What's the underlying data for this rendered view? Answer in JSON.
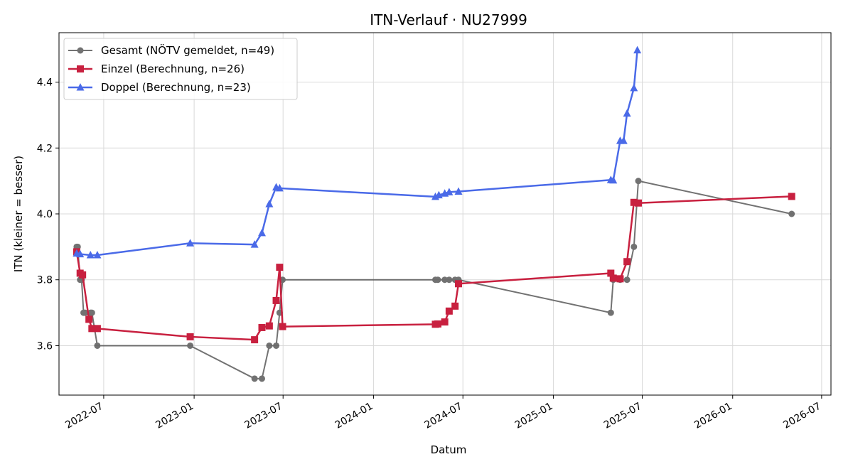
{
  "chart_data": {
    "type": "line",
    "title": "ITN-Verlauf · NU27999",
    "xlabel": "Datum",
    "ylabel": "ITN  (kleiner = besser)",
    "xlim": [
      "2022-04-01",
      "2026-07-20"
    ],
    "ylim": [
      3.45,
      4.55
    ],
    "x_ticks": [
      "2022-07",
      "2023-01",
      "2023-07",
      "2024-01",
      "2024-07",
      "2025-01",
      "2025-07",
      "2026-01",
      "2026-07"
    ],
    "y_ticks": [
      3.6,
      3.8,
      4.0,
      4.2,
      4.4
    ],
    "y_tick_labels": [
      "3.6",
      "3.8",
      "4.0",
      "4.2",
      "4.4"
    ],
    "grid": true,
    "legend_position": "top-left",
    "series": [
      {
        "name": "Gesamt (NÖTV gemeldet, n=49)",
        "color": "#444444",
        "marker": "circle",
        "points": [
          [
            "2022-05-07",
            3.9
          ],
          [
            "2022-05-09",
            3.9
          ],
          [
            "2022-05-14",
            3.8
          ],
          [
            "2022-05-17",
            3.8
          ],
          [
            "2022-05-21",
            3.7
          ],
          [
            "2022-05-24",
            3.7
          ],
          [
            "2022-06-04",
            3.7
          ],
          [
            "2022-06-07",
            3.7
          ],
          [
            "2022-06-18",
            3.6
          ],
          [
            "2022-12-24",
            3.6
          ],
          [
            "2023-05-04",
            3.5
          ],
          [
            "2023-05-19",
            3.5
          ],
          [
            "2023-06-03",
            3.6
          ],
          [
            "2023-06-17",
            3.6
          ],
          [
            "2023-06-24",
            3.7
          ],
          [
            "2023-06-30",
            3.8
          ],
          [
            "2024-05-06",
            3.8
          ],
          [
            "2024-05-11",
            3.8
          ],
          [
            "2024-05-25",
            3.8
          ],
          [
            "2024-06-03",
            3.8
          ],
          [
            "2024-06-15",
            3.8
          ],
          [
            "2024-06-22",
            3.8
          ],
          [
            "2025-04-28",
            3.7
          ],
          [
            "2025-05-03",
            3.8
          ],
          [
            "2025-05-17",
            3.8
          ],
          [
            "2025-05-31",
            3.8
          ],
          [
            "2025-06-14",
            3.9
          ],
          [
            "2025-06-23",
            4.1
          ],
          [
            "2026-05-01",
            4.0
          ]
        ]
      },
      {
        "name": "Einzel (Berechnung, n=26)",
        "color": "#c8203f",
        "marker": "square",
        "points": [
          [
            "2022-05-07",
            3.885
          ],
          [
            "2022-05-14",
            3.82
          ],
          [
            "2022-05-19",
            3.815
          ],
          [
            "2022-06-01",
            3.68
          ],
          [
            "2022-06-07",
            3.652
          ],
          [
            "2022-06-18",
            3.652
          ],
          [
            "2022-12-24",
            3.627
          ],
          [
            "2023-05-04",
            3.618
          ],
          [
            "2023-05-19",
            3.655
          ],
          [
            "2023-06-03",
            3.66
          ],
          [
            "2023-06-17",
            3.737
          ],
          [
            "2023-06-24",
            3.838
          ],
          [
            "2023-06-30",
            3.658
          ],
          [
            "2024-05-06",
            3.665
          ],
          [
            "2024-05-11",
            3.666
          ],
          [
            "2024-05-25",
            3.672
          ],
          [
            "2024-06-03",
            3.705
          ],
          [
            "2024-06-15",
            3.72
          ],
          [
            "2024-06-22",
            3.788
          ],
          [
            "2025-04-28",
            3.82
          ],
          [
            "2025-05-03",
            3.805
          ],
          [
            "2025-05-17",
            3.803
          ],
          [
            "2025-05-31",
            3.855
          ],
          [
            "2025-06-14",
            4.035
          ],
          [
            "2025-06-23",
            4.033
          ],
          [
            "2026-05-01",
            4.053
          ]
        ]
      },
      {
        "name": "Doppel (Berechnung, n=23)",
        "color": "#4a6ae8",
        "marker": "triangle",
        "points": [
          [
            "2022-05-07",
            3.88
          ],
          [
            "2022-05-14",
            3.878
          ],
          [
            "2022-06-04",
            3.875
          ],
          [
            "2022-06-18",
            3.875
          ],
          [
            "2022-12-24",
            3.911
          ],
          [
            "2023-05-04",
            3.907
          ],
          [
            "2023-05-19",
            3.942
          ],
          [
            "2023-06-03",
            4.03
          ],
          [
            "2023-06-17",
            4.081
          ],
          [
            "2023-06-24",
            4.078
          ],
          [
            "2024-05-06",
            4.052
          ],
          [
            "2024-05-13",
            4.057
          ],
          [
            "2024-05-25",
            4.062
          ],
          [
            "2024-06-03",
            4.066
          ],
          [
            "2024-06-22",
            4.068
          ],
          [
            "2025-04-28",
            4.103
          ],
          [
            "2025-05-03",
            4.102
          ],
          [
            "2025-05-17",
            4.222
          ],
          [
            "2025-05-24",
            4.222
          ],
          [
            "2025-05-31",
            4.305
          ],
          [
            "2025-06-14",
            4.382
          ],
          [
            "2025-06-21",
            4.497
          ]
        ]
      }
    ]
  }
}
